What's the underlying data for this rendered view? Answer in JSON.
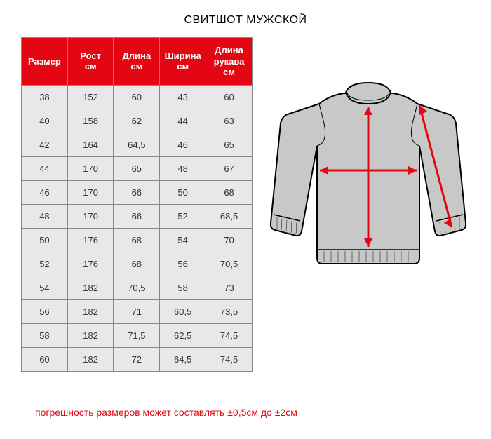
{
  "title": "СВИТШОТ МУЖСКОЙ",
  "table": {
    "columns": [
      "Размер",
      "Рост\nсм",
      "Длина\nсм",
      "Ширина\nсм",
      "Длина\nрукава\nсм"
    ],
    "rows": [
      [
        "38",
        "152",
        "60",
        "43",
        "60"
      ],
      [
        "40",
        "158",
        "62",
        "44",
        "63"
      ],
      [
        "42",
        "164",
        "64,5",
        "46",
        "65"
      ],
      [
        "44",
        "170",
        "65",
        "48",
        "67"
      ],
      [
        "46",
        "170",
        "66",
        "50",
        "68"
      ],
      [
        "48",
        "170",
        "66",
        "52",
        "68,5"
      ],
      [
        "50",
        "176",
        "68",
        "54",
        "70"
      ],
      [
        "52",
        "176",
        "68",
        "56",
        "70,5"
      ],
      [
        "54",
        "182",
        "70,5",
        "58",
        "73"
      ],
      [
        "56",
        "182",
        "71",
        "60,5",
        "73,5"
      ],
      [
        "58",
        "182",
        "71,5",
        "62,5",
        "74,5"
      ],
      [
        "60",
        "182",
        "72",
        "64,5",
        "74,5"
      ]
    ],
    "header_bg": "#e30613",
    "header_text": "#ffffff",
    "cell_bg": "#e8e8e8",
    "cell_text": "#333333",
    "border_color": "#888888"
  },
  "diagram": {
    "garment_fill": "#c8c8c8",
    "garment_stroke": "#000000",
    "arrow_color": "#e30613",
    "arrow_width": 3
  },
  "footnote": "погрешность размеров может составлять   ±0,5см до  ±2см",
  "footnote_color": "#e30613"
}
